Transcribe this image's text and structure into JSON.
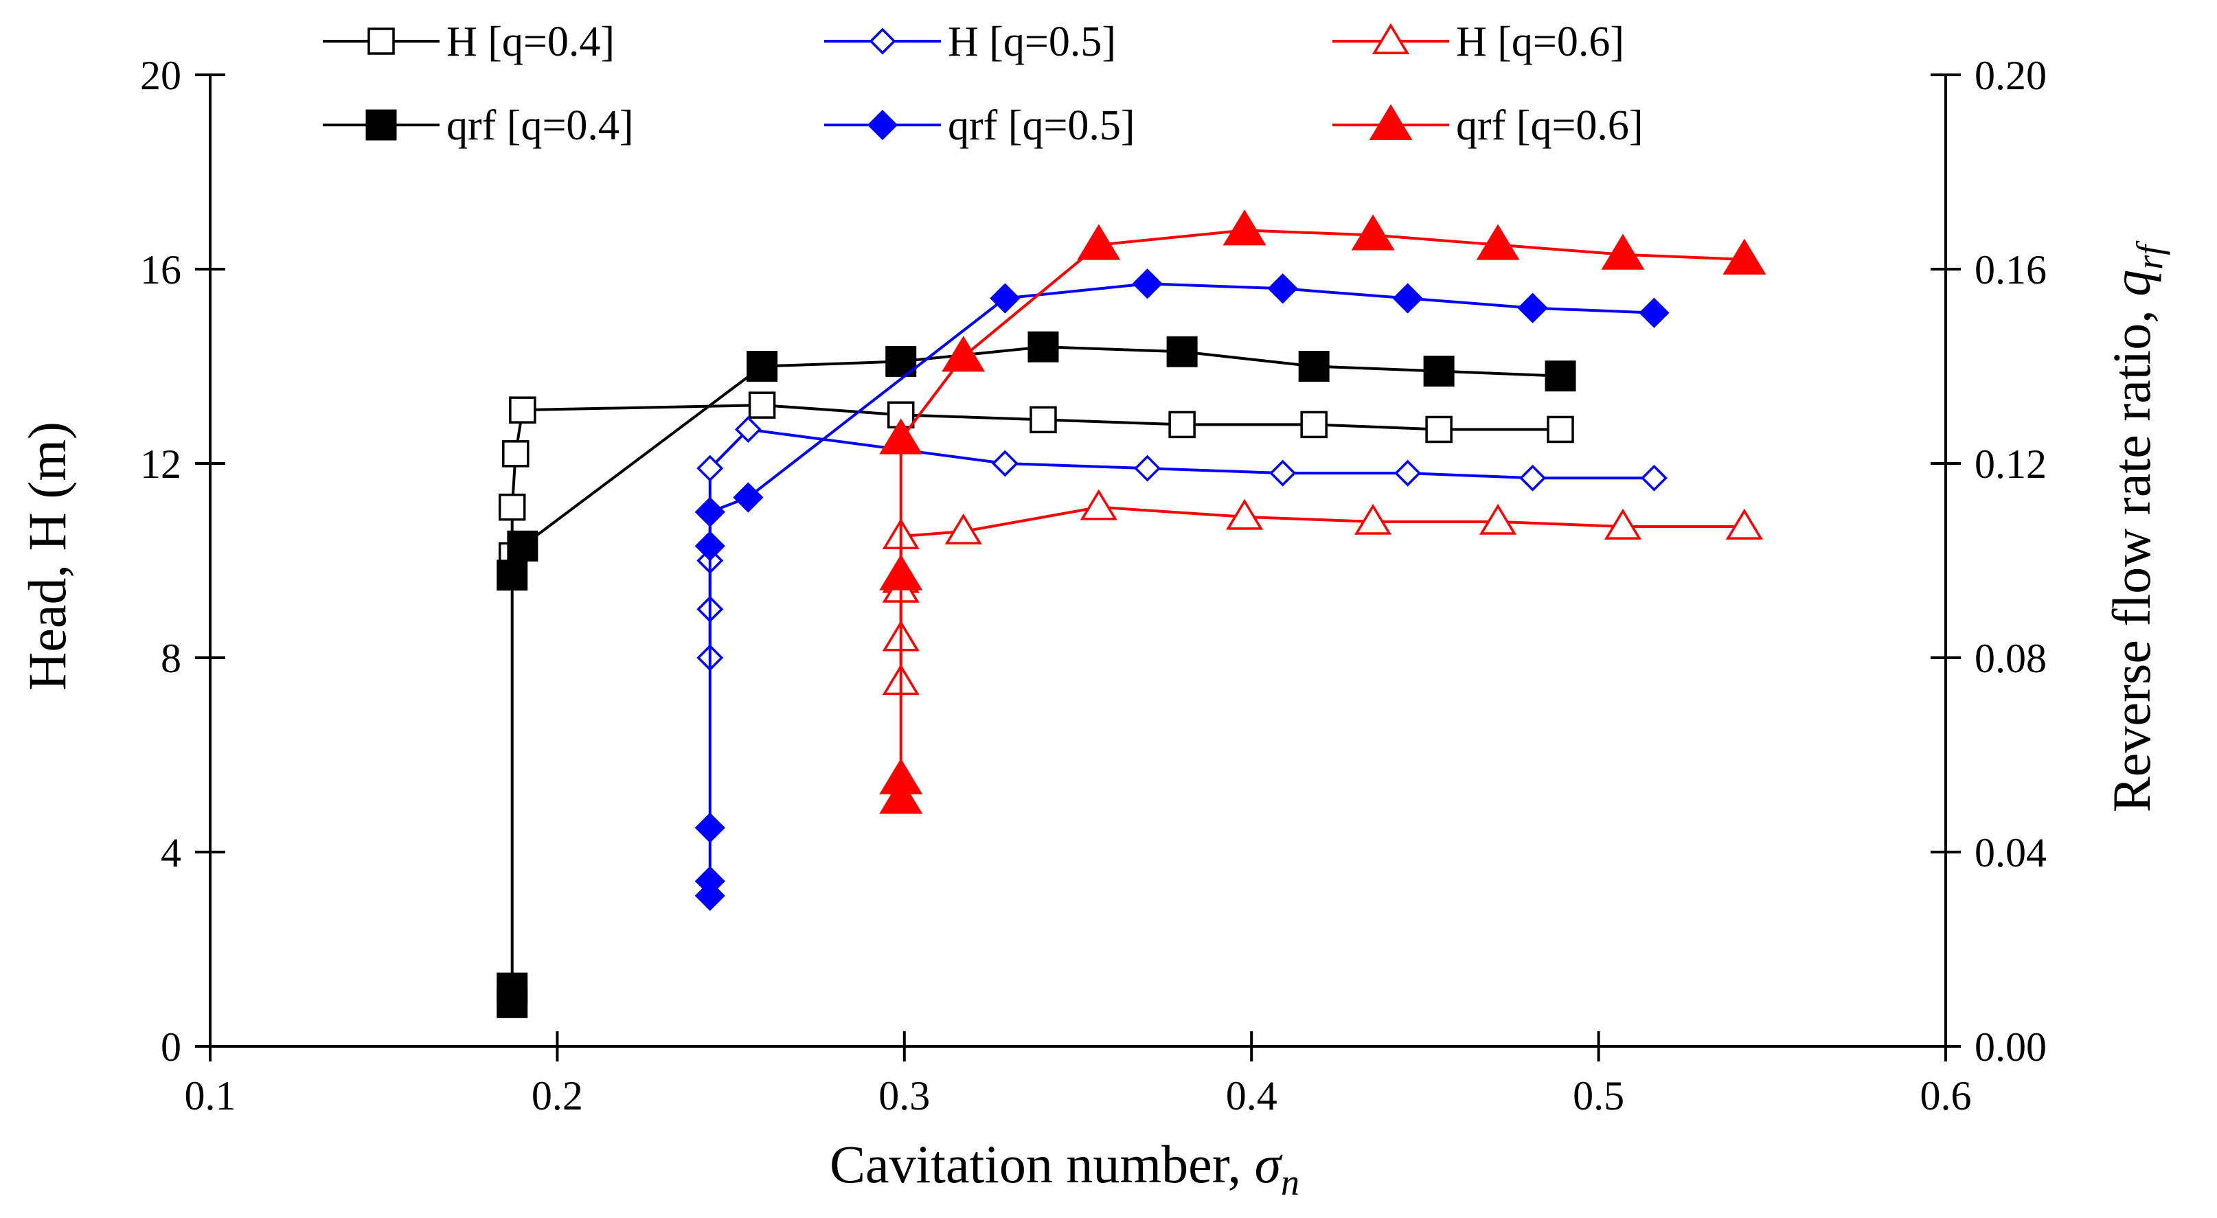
{
  "chart_data": {
    "type": "scatter",
    "title": "",
    "xlabel": "Cavitation number, ",
    "xlabel_symbol": "σ",
    "xlabel_sub": "n",
    "ylabel": "Head, H (m)",
    "y2label": "Reverse flow rate ratio, ",
    "y2label_symbol": "q",
    "y2label_sub": "rf",
    "xlim": [
      0.1,
      0.6
    ],
    "ylim": [
      0,
      20
    ],
    "y2lim": [
      0,
      0.2
    ],
    "xticks": [
      "0.1",
      "0.2",
      "0.3",
      "0.4",
      "0.5",
      "0.6"
    ],
    "yticks": [
      "0",
      "4",
      "8",
      "12",
      "16",
      "20"
    ],
    "y2ticks": [
      "0.00",
      "0.04",
      "0.08",
      "0.12",
      "0.16",
      "0.20"
    ],
    "legend_position": "top",
    "grid": false,
    "series": [
      {
        "name": "H [q=0.4]",
        "axis": "left",
        "color": "#000000",
        "marker": "square",
        "filled": false,
        "x": [
          0.489,
          0.454,
          0.418,
          0.38,
          0.34,
          0.299,
          0.259,
          0.19,
          0.188,
          0.187,
          0.187
        ],
        "y": [
          12.7,
          12.7,
          12.8,
          12.8,
          12.9,
          13.0,
          13.2,
          13.1,
          12.2,
          11.1,
          10.1
        ]
      },
      {
        "name": "H [q=0.5]",
        "axis": "left",
        "color": "#0000ff",
        "marker": "diamond",
        "filled": false,
        "x": [
          0.516,
          0.481,
          0.445,
          0.409,
          0.37,
          0.329,
          0.255,
          0.244,
          0.244,
          0.244,
          0.244
        ],
        "y": [
          11.7,
          11.7,
          11.8,
          11.8,
          11.9,
          12.0,
          12.7,
          11.9,
          10.0,
          9.0,
          8.0
        ]
      },
      {
        "name": "H [q=0.6]",
        "axis": "left",
        "color": "#ff0000",
        "marker": "triangle",
        "filled": false,
        "x": [
          0.542,
          0.507,
          0.471,
          0.435,
          0.398,
          0.356,
          0.317,
          0.299,
          0.299,
          0.299,
          0.299,
          0.299
        ],
        "y": [
          10.7,
          10.7,
          10.8,
          10.8,
          10.9,
          11.1,
          10.6,
          10.5,
          9.6,
          9.4,
          8.4,
          7.5
        ]
      },
      {
        "name": "qrf [q=0.4]",
        "axis": "right",
        "color": "#000000",
        "marker": "square",
        "filled": true,
        "x": [
          0.489,
          0.454,
          0.418,
          0.38,
          0.34,
          0.299,
          0.259,
          0.19,
          0.187,
          0.187,
          0.187
        ],
        "y": [
          0.138,
          0.139,
          0.14,
          0.143,
          0.144,
          0.141,
          0.14,
          0.103,
          0.097,
          0.012,
          0.009
        ]
      },
      {
        "name": "qrf [q=0.5]",
        "axis": "right",
        "color": "#0000ff",
        "marker": "diamond",
        "filled": true,
        "x": [
          0.516,
          0.481,
          0.445,
          0.409,
          0.37,
          0.329,
          0.255,
          0.244,
          0.244,
          0.244,
          0.244,
          0.244
        ],
        "y": [
          0.151,
          0.152,
          0.154,
          0.156,
          0.157,
          0.154,
          0.113,
          0.11,
          0.103,
          0.045,
          0.034,
          0.031
        ]
      },
      {
        "name": "qrf [q=0.6]",
        "axis": "right",
        "color": "#ff0000",
        "marker": "triangle",
        "filled": true,
        "x": [
          0.542,
          0.507,
          0.471,
          0.435,
          0.398,
          0.356,
          0.317,
          0.299,
          0.299,
          0.299,
          0.299
        ],
        "y": [
          0.162,
          0.163,
          0.165,
          0.167,
          0.168,
          0.165,
          0.142,
          0.125,
          0.097,
          0.055,
          0.051
        ]
      }
    ]
  }
}
